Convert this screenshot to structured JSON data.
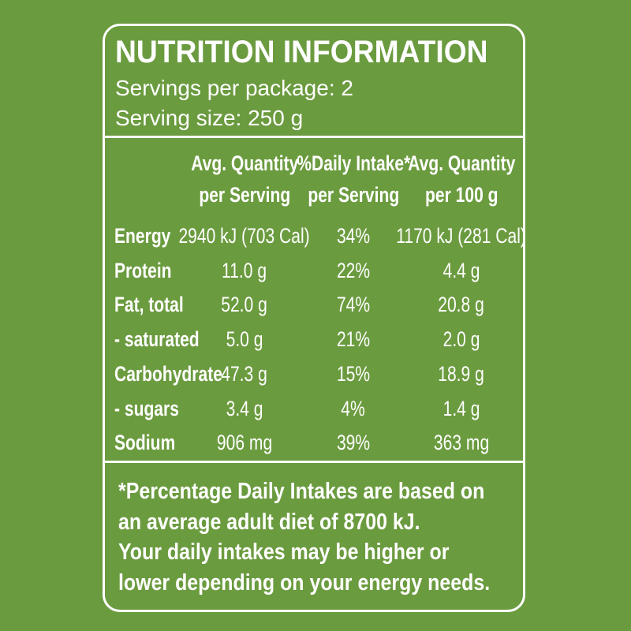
{
  "header": {
    "title": "NUTRITION INFORMATION",
    "servings_per_package": "Servings per package: 2",
    "serving_size": "Serving size: 250 g"
  },
  "table": {
    "columns": [
      [
        "Avg. Quantity",
        "per Serving"
      ],
      [
        "%Daily Intake*",
        "per Serving"
      ],
      [
        "Avg. Quantity",
        "per 100 g"
      ]
    ],
    "rows": [
      [
        "Energy",
        "2940 kJ (703 Cal)",
        "34%",
        "1170 kJ (281 Cal)"
      ],
      [
        "Protein",
        "11.0 g",
        "22%",
        "4.4 g"
      ],
      [
        "Fat, total",
        "52.0 g",
        "74%",
        "20.8 g"
      ],
      [
        "- saturated",
        "5.0 g",
        "21%",
        "2.0 g"
      ],
      [
        "Carbohydrate",
        "47.3 g",
        "15%",
        "18.9 g"
      ],
      [
        "- sugars",
        "3.4 g",
        "4%",
        "1.4 g"
      ],
      [
        "Sodium",
        "906 mg",
        "39%",
        "363 mg"
      ]
    ]
  },
  "footnote": [
    "*Percentage Daily Intakes are based on",
    "an average adult diet of 8700 kJ.",
    "Your daily intakes may be higher or",
    "lower depending on your energy needs."
  ]
}
